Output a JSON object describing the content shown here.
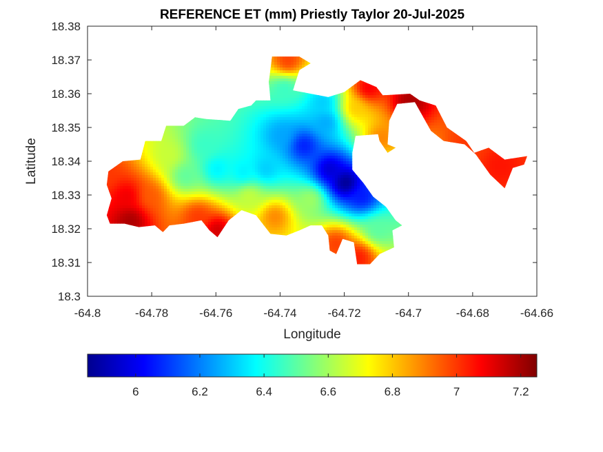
{
  "chart_data": {
    "type": "heatmap",
    "title": "REFERENCE ET (mm) Priestly Taylor 20-Jul-2025",
    "xlabel": "Longitude",
    "ylabel": "Latitude",
    "xlim": [
      -64.8,
      -64.66
    ],
    "ylim": [
      18.3,
      18.38
    ],
    "xticks": [
      "-64.8",
      "-64.78",
      "-64.76",
      "-64.74",
      "-64.72",
      "-64.7",
      "-64.68",
      "-64.66"
    ],
    "yticks": [
      "18.3",
      "18.31",
      "18.32",
      "18.33",
      "18.34",
      "18.35",
      "18.36",
      "18.37",
      "18.38"
    ],
    "grid": false,
    "colormap": "jet",
    "colorbar": {
      "location": "bottom",
      "clim": [
        5.85,
        7.25
      ],
      "ticks": [
        "6",
        "6.2",
        "6.4",
        "6.6",
        "6.8",
        "7",
        "7.2"
      ]
    },
    "region_outline": [
      [
        -64.7935,
        18.337
      ],
      [
        -64.789,
        18.34
      ],
      [
        -64.7835,
        18.3405
      ],
      [
        -64.782,
        18.346
      ],
      [
        -64.777,
        18.346
      ],
      [
        -64.7755,
        18.3505
      ],
      [
        -64.77,
        18.3505
      ],
      [
        -64.7665,
        18.353
      ],
      [
        -64.763,
        18.3525
      ],
      [
        -64.7555,
        18.352
      ],
      [
        -64.753,
        18.3555
      ],
      [
        -64.749,
        18.3565
      ],
      [
        -64.7475,
        18.358
      ],
      [
        -64.743,
        18.358
      ],
      [
        -64.7435,
        18.3635
      ],
      [
        -64.7425,
        18.371
      ],
      [
        -64.734,
        18.371
      ],
      [
        -64.7305,
        18.369
      ],
      [
        -64.734,
        18.367
      ],
      [
        -64.736,
        18.361
      ],
      [
        -64.725,
        18.359
      ],
      [
        -64.72,
        18.3605
      ],
      [
        -64.715,
        18.364
      ],
      [
        -64.71,
        18.362
      ],
      [
        -64.708,
        18.3595
      ],
      [
        -64.6995,
        18.36
      ],
      [
        -64.6965,
        18.358
      ],
      [
        -64.6915,
        18.3565
      ],
      [
        -64.688,
        18.35
      ],
      [
        -64.682,
        18.346
      ],
      [
        -64.6795,
        18.3425
      ],
      [
        -64.675,
        18.344
      ],
      [
        -64.67,
        18.3405
      ],
      [
        -64.663,
        18.3415
      ],
      [
        -64.664,
        18.339
      ],
      [
        -64.6675,
        18.338
      ],
      [
        -64.67,
        18.332
      ],
      [
        -64.6745,
        18.336
      ],
      [
        -64.679,
        18.342
      ],
      [
        -64.6825,
        18.345
      ],
      [
        -64.689,
        18.346
      ],
      [
        -64.693,
        18.349
      ],
      [
        -64.698,
        18.3575
      ],
      [
        -64.7035,
        18.357
      ],
      [
        -64.706,
        18.352
      ],
      [
        -64.7065,
        18.345
      ],
      [
        -64.704,
        18.344
      ],
      [
        -64.7065,
        18.3425
      ],
      [
        -64.709,
        18.346
      ],
      [
        -64.7095,
        18.348
      ],
      [
        -64.7165,
        18.3475
      ],
      [
        -64.7175,
        18.3425
      ],
      [
        -64.7175,
        18.3375
      ],
      [
        -64.714,
        18.3335
      ],
      [
        -64.711,
        18.3295
      ],
      [
        -64.707,
        18.3265
      ],
      [
        -64.704,
        18.3225
      ],
      [
        -64.702,
        18.321
      ],
      [
        -64.705,
        18.3195
      ],
      [
        -64.7045,
        18.3145
      ],
      [
        -64.709,
        18.3125
      ],
      [
        -64.712,
        18.3095
      ],
      [
        -64.716,
        18.3095
      ],
      [
        -64.717,
        18.316
      ],
      [
        -64.7205,
        18.317
      ],
      [
        -64.7225,
        18.3125
      ],
      [
        -64.7245,
        18.3135
      ],
      [
        -64.725,
        18.318
      ],
      [
        -64.727,
        18.321
      ],
      [
        -64.7305,
        18.321
      ],
      [
        -64.734,
        18.3195
      ],
      [
        -64.738,
        18.318
      ],
      [
        -64.743,
        18.3185
      ],
      [
        -64.7475,
        18.324
      ],
      [
        -64.752,
        18.3255
      ],
      [
        -64.756,
        18.3225
      ],
      [
        -64.7595,
        18.3175
      ],
      [
        -64.762,
        18.3195
      ],
      [
        -64.7645,
        18.3225
      ],
      [
        -64.77,
        18.3215
      ],
      [
        -64.7745,
        18.321
      ],
      [
        -64.7765,
        18.319
      ],
      [
        -64.779,
        18.321
      ],
      [
        -64.784,
        18.3205
      ],
      [
        -64.7885,
        18.3215
      ],
      [
        -64.793,
        18.3215
      ],
      [
        -64.794,
        18.324
      ],
      [
        -64.7925,
        18.329
      ],
      [
        -64.794,
        18.333
      ]
    ],
    "hotspots": [
      {
        "lon": -64.72,
        "lat": 18.334,
        "value": 5.85
      },
      {
        "lon": -64.725,
        "lat": 18.338,
        "value": 5.95
      },
      {
        "lon": -64.733,
        "lat": 18.345,
        "value": 6.05
      },
      {
        "lon": -64.715,
        "lat": 18.33,
        "value": 6.05
      },
      {
        "lon": -64.726,
        "lat": 18.352,
        "value": 6.25
      },
      {
        "lon": -64.74,
        "lat": 18.348,
        "value": 6.25
      },
      {
        "lon": -64.727,
        "lat": 18.358,
        "value": 6.3
      },
      {
        "lon": -64.745,
        "lat": 18.338,
        "value": 6.3
      },
      {
        "lon": -64.752,
        "lat": 18.337,
        "value": 6.35
      },
      {
        "lon": -64.76,
        "lat": 18.338,
        "value": 6.35
      },
      {
        "lon": -64.77,
        "lat": 18.336,
        "value": 6.5
      },
      {
        "lon": -64.764,
        "lat": 18.345,
        "value": 6.45
      },
      {
        "lon": -64.739,
        "lat": 18.362,
        "value": 6.45
      },
      {
        "lon": -64.71,
        "lat": 18.32,
        "value": 6.5
      },
      {
        "lon": -64.731,
        "lat": 18.329,
        "value": 6.6
      },
      {
        "lon": -64.75,
        "lat": 18.33,
        "value": 6.65
      },
      {
        "lon": -64.775,
        "lat": 18.342,
        "value": 6.65
      },
      {
        "lon": -64.742,
        "lat": 18.324,
        "value": 6.9
      },
      {
        "lon": -64.781,
        "lat": 18.33,
        "value": 6.95
      },
      {
        "lon": -64.717,
        "lat": 18.356,
        "value": 6.8
      },
      {
        "lon": -64.709,
        "lat": 18.347,
        "value": 6.9
      },
      {
        "lon": -64.788,
        "lat": 18.33,
        "value": 7.1
      },
      {
        "lon": -64.787,
        "lat": 18.323,
        "value": 7.2
      },
      {
        "lon": -64.76,
        "lat": 18.32,
        "value": 7.15
      },
      {
        "lon": -64.766,
        "lat": 18.324,
        "value": 7.0
      },
      {
        "lon": -64.713,
        "lat": 18.362,
        "value": 7.1
      },
      {
        "lon": -64.7,
        "lat": 18.358,
        "value": 7.2
      },
      {
        "lon": -64.672,
        "lat": 18.339,
        "value": 7.05
      },
      {
        "lon": -64.682,
        "lat": 18.346,
        "value": 7.0
      },
      {
        "lon": -64.716,
        "lat": 18.312,
        "value": 7.05
      },
      {
        "lon": -64.723,
        "lat": 18.316,
        "value": 7.0
      },
      {
        "lon": -64.738,
        "lat": 18.37,
        "value": 7.0
      },
      {
        "lon": -64.795,
        "lat": 18.336,
        "value": 7.0
      }
    ]
  }
}
